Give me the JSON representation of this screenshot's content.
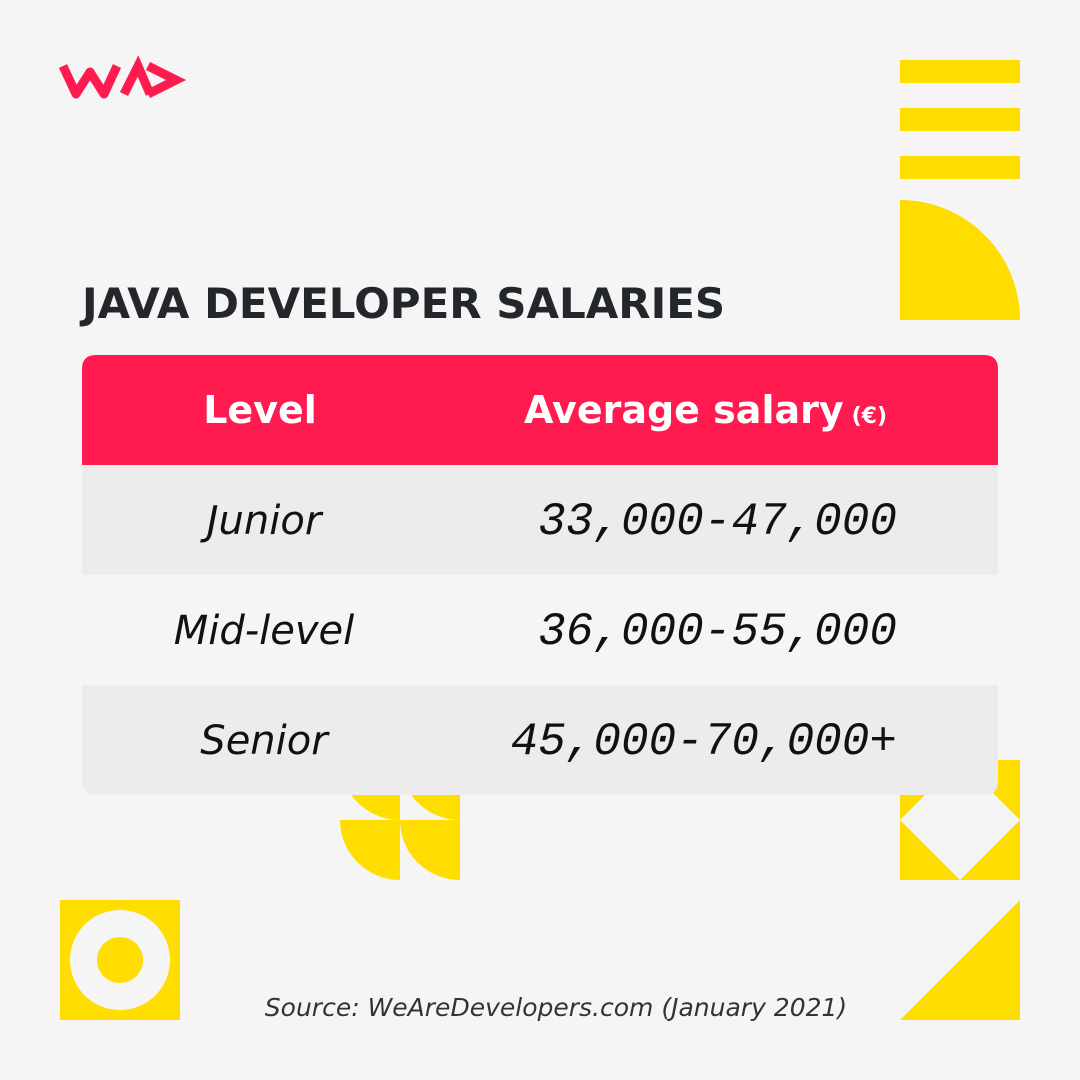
{
  "title": "JAVA DEVELOPER SALARIES",
  "table": {
    "header": {
      "level": "Level",
      "salary": "Average salary",
      "unit": "(€)"
    },
    "rows": [
      [
        "Junior",
        "33,000-47,000"
      ],
      [
        "Mid-level",
        "36,000-55,000"
      ],
      [
        "Senior",
        "45,000-70,000+"
      ]
    ]
  },
  "source": "Source: WeAreDevelopers.com (January 2021)"
}
